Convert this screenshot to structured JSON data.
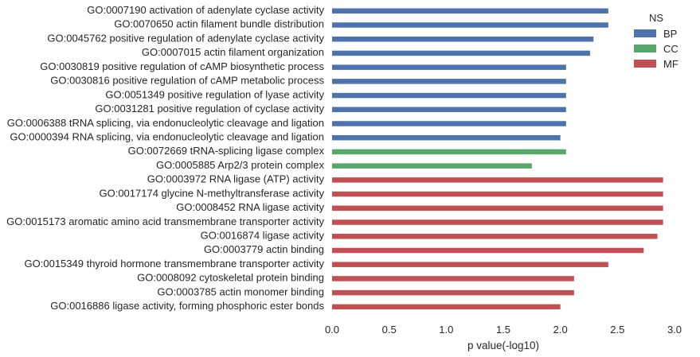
{
  "chart_data": {
    "type": "bar",
    "orientation": "horizontal",
    "xlabel": "p value(-log10)",
    "ylabel": "",
    "xlim": [
      0,
      3.0
    ],
    "xticks": [
      "0.0",
      "0.5",
      "1.0",
      "1.5",
      "2.0",
      "2.5",
      "3.0"
    ],
    "grid": false,
    "legend": {
      "title": "NS",
      "placement": "top-right",
      "entries": [
        {
          "name": "BP",
          "color": "#4c72b0"
        },
        {
          "name": "CC",
          "color": "#55a868"
        },
        {
          "name": "MF",
          "color": "#c44e52"
        }
      ]
    },
    "categories": [
      "GO:0007190 activation of adenylate cyclase activity",
      "GO:0070650 actin filament bundle distribution",
      "GO:0045762 positive regulation of adenylate cyclase activity",
      "GO:0007015 actin filament organization",
      "GO:0030819 positive regulation of cAMP biosynthetic process",
      "GO:0030816 positive regulation of cAMP metabolic process",
      "GO:0051349 positive regulation of lyase activity",
      "GO:0031281 positive regulation of cyclase activity",
      "GO:0006388 tRNA splicing, via endonucleolytic cleavage and ligation",
      "GO:0000394 RNA splicing, via endonucleolytic cleavage and ligation",
      "GO:0072669 tRNA-splicing ligase complex",
      "GO:0005885 Arp2/3 protein complex",
      "GO:0003972 RNA ligase (ATP) activity",
      "GO:0017174 glycine N-methyltransferase activity",
      "GO:0008452 RNA ligase activity",
      "GO:0015173 aromatic amino acid transmembrane transporter activity",
      "GO:0016874 ligase activity",
      "GO:0003779 actin binding",
      "GO:0015349 thyroid hormone transmembrane transporter activity",
      "GO:0008092 cytoskeletal protein binding",
      "GO:0003785 actin monomer binding",
      "GO:0016886 ligase activity, forming phosphoric ester bonds"
    ],
    "series": [
      {
        "name": "BP",
        "values": [
          2.42,
          2.42,
          2.29,
          2.26,
          2.05,
          2.05,
          2.05,
          2.05,
          2.05,
          2.0,
          null,
          null,
          null,
          null,
          null,
          null,
          null,
          null,
          null,
          null,
          null,
          null
        ]
      },
      {
        "name": "CC",
        "values": [
          null,
          null,
          null,
          null,
          null,
          null,
          null,
          null,
          null,
          null,
          2.05,
          1.75,
          null,
          null,
          null,
          null,
          null,
          null,
          null,
          null,
          null,
          null
        ]
      },
      {
        "name": "MF",
        "values": [
          null,
          null,
          null,
          null,
          null,
          null,
          null,
          null,
          null,
          null,
          null,
          null,
          2.9,
          2.9,
          2.9,
          2.9,
          2.85,
          2.73,
          2.42,
          2.12,
          2.12,
          2.0
        ]
      }
    ]
  }
}
